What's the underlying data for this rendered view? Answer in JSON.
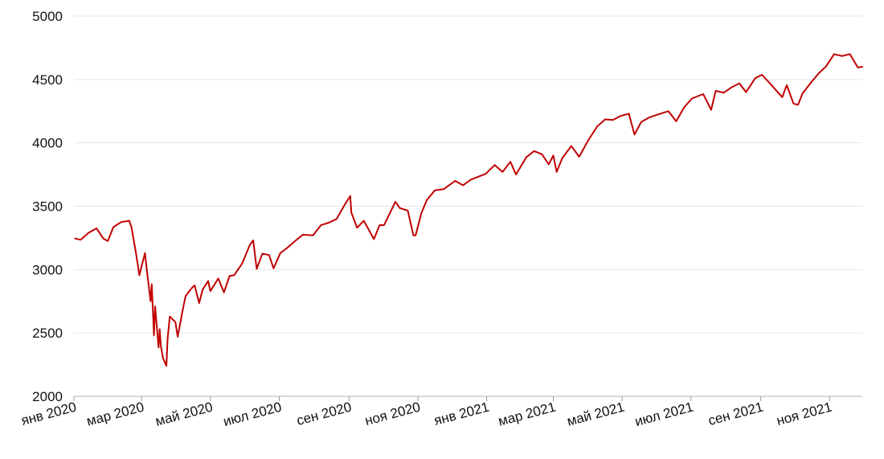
{
  "chart_data": {
    "type": "line",
    "title": "",
    "xlabel": "",
    "ylabel": "",
    "ylim": [
      2000,
      5000
    ],
    "y_ticks": [
      2000,
      2500,
      3000,
      3500,
      4000,
      4500,
      5000
    ],
    "x_ticks": [
      "янв 2020",
      "мар 2020",
      "май 2020",
      "июл 2020",
      "сен 2020",
      "ноя 2020",
      "янв 2021",
      "мар 2021",
      "май 2021",
      "июл 2021",
      "сен 2021",
      "ноя 2021"
    ],
    "grid": true,
    "legend": "none",
    "line_color": "#c00000",
    "series": [
      {
        "x": [
          "2020-01-02",
          "2020-01-07",
          "2020-01-14",
          "2020-01-21",
          "2020-01-27",
          "2020-01-31",
          "2020-02-05",
          "2020-02-12",
          "2020-02-19",
          "2020-02-21",
          "2020-02-25",
          "2020-02-28",
          "2020-03-04",
          "2020-03-06",
          "2020-03-09",
          "2020-03-10",
          "2020-03-12",
          "2020-03-13",
          "2020-03-16",
          "2020-03-17",
          "2020-03-18",
          "2020-03-20",
          "2020-03-23",
          "2020-03-24",
          "2020-03-26",
          "2020-03-31",
          "2020-04-02",
          "2020-04-06",
          "2020-04-09",
          "2020-04-14",
          "2020-04-17",
          "2020-04-21",
          "2020-04-24",
          "2020-04-29",
          "2020-05-01",
          "2020-05-08",
          "2020-05-13",
          "2020-05-18",
          "2020-05-22",
          "2020-05-29",
          "2020-06-05",
          "2020-06-08",
          "2020-06-11",
          "2020-06-16",
          "2020-06-22",
          "2020-06-26",
          "2020-07-02",
          "2020-07-08",
          "2020-07-15",
          "2020-07-22",
          "2020-07-31",
          "2020-08-07",
          "2020-08-14",
          "2020-08-21",
          "2020-08-28",
          "2020-09-02",
          "2020-09-03",
          "2020-09-08",
          "2020-09-14",
          "2020-09-23",
          "2020-09-28",
          "2020-10-02",
          "2020-10-12",
          "2020-10-16",
          "2020-10-23",
          "2020-10-28",
          "2020-10-30",
          "2020-11-04",
          "2020-11-09",
          "2020-11-16",
          "2020-11-24",
          "2020-12-04",
          "2020-12-11",
          "2020-12-18",
          "2020-12-31",
          "2021-01-08",
          "2021-01-15",
          "2021-01-22",
          "2021-01-27",
          "2021-02-05",
          "2021-02-12",
          "2021-02-19",
          "2021-02-25",
          "2021-03-01",
          "2021-03-04",
          "2021-03-09",
          "2021-03-17",
          "2021-03-24",
          "2021-04-01",
          "2021-04-09",
          "2021-04-16",
          "2021-04-23",
          "2021-04-29",
          "2021-05-07",
          "2021-05-12",
          "2021-05-18",
          "2021-05-25",
          "2021-06-04",
          "2021-06-11",
          "2021-06-18",
          "2021-06-25",
          "2021-07-02",
          "2021-07-12",
          "2021-07-19",
          "2021-07-23",
          "2021-07-30",
          "2021-08-06",
          "2021-08-13",
          "2021-08-19",
          "2021-08-27",
          "2021-09-02",
          "2021-09-10",
          "2021-09-20",
          "2021-09-24",
          "2021-09-30",
          "2021-10-04",
          "2021-10-08",
          "2021-10-15",
          "2021-10-22",
          "2021-10-29",
          "2021-11-05",
          "2021-11-12",
          "2021-11-19",
          "2021-11-26",
          "2021-11-30"
        ],
        "y": [
          3245,
          3235,
          3290,
          3325,
          3245,
          3225,
          3335,
          3375,
          3385,
          3335,
          3130,
          2955,
          3130,
          2970,
          2750,
          2885,
          2480,
          2710,
          2385,
          2530,
          2400,
          2300,
          2240,
          2450,
          2630,
          2585,
          2470,
          2660,
          2790,
          2850,
          2875,
          2735,
          2840,
          2910,
          2830,
          2930,
          2820,
          2950,
          2955,
          3045,
          3195,
          3230,
          3005,
          3125,
          3115,
          3010,
          3130,
          3170,
          3225,
          3275,
          3270,
          3350,
          3370,
          3400,
          3510,
          3580,
          3450,
          3330,
          3385,
          3240,
          3350,
          3350,
          3535,
          3485,
          3465,
          3270,
          3270,
          3445,
          3550,
          3625,
          3635,
          3700,
          3665,
          3710,
          3755,
          3825,
          3770,
          3850,
          3750,
          3885,
          3935,
          3910,
          3830,
          3900,
          3770,
          3880,
          3975,
          3890,
          4020,
          4130,
          4185,
          4180,
          4210,
          4230,
          4065,
          4165,
          4200,
          4230,
          4250,
          4170,
          4280,
          4350,
          4385,
          4260,
          4410,
          4395,
          4437,
          4470,
          4400,
          4510,
          4537,
          4460,
          4360,
          4455,
          4310,
          4300,
          4390,
          4470,
          4545,
          4605,
          4700,
          4685,
          4700,
          4595,
          4600
        ]
      }
    ]
  }
}
